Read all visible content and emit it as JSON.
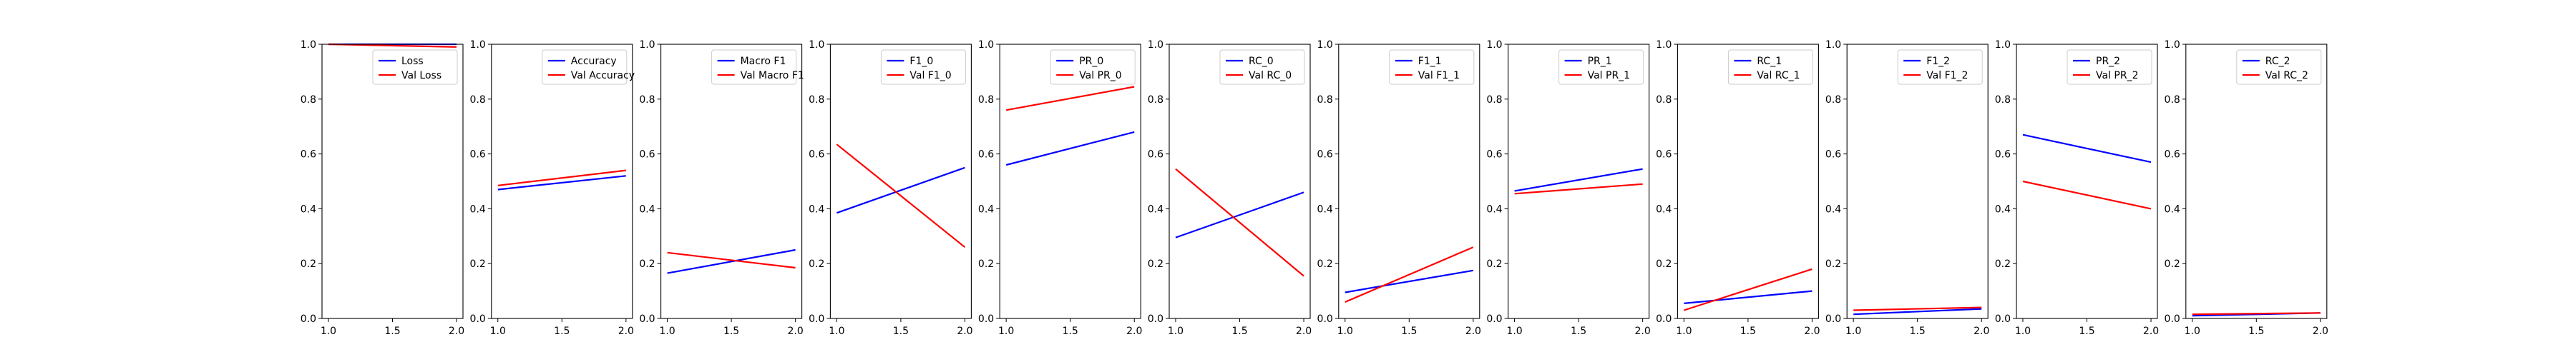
{
  "chart_data": [
    {
      "type": "line",
      "xlim": [
        0.95,
        2.05
      ],
      "ylim": [
        0,
        1
      ],
      "x": [
        1,
        2
      ],
      "xticks": [
        "1.0",
        "1.5",
        "2.0"
      ],
      "yticks": [
        "0.0",
        "0.2",
        "0.4",
        "0.6",
        "0.8",
        "1.0"
      ],
      "legend_position": "top-right",
      "series": [
        {
          "name": "Loss",
          "color": "#0000ff",
          "values": [
            1.0,
            1.0
          ]
        },
        {
          "name": "Val Loss",
          "color": "#ff0000",
          "values": [
            1.0,
            0.99
          ]
        }
      ]
    },
    {
      "type": "line",
      "xlim": [
        0.95,
        2.05
      ],
      "ylim": [
        0,
        1
      ],
      "x": [
        1,
        2
      ],
      "xticks": [
        "1.0",
        "1.5",
        "2.0"
      ],
      "yticks": [
        "0.0",
        "0.2",
        "0.4",
        "0.6",
        "0.8",
        "1.0"
      ],
      "legend_position": "top-right",
      "series": [
        {
          "name": "Accuracy",
          "color": "#0000ff",
          "values": [
            0.47,
            0.52
          ]
        },
        {
          "name": "Val Accuracy",
          "color": "#ff0000",
          "values": [
            0.485,
            0.54
          ]
        }
      ]
    },
    {
      "type": "line",
      "xlim": [
        0.95,
        2.05
      ],
      "ylim": [
        0,
        1
      ],
      "x": [
        1,
        2
      ],
      "xticks": [
        "1.0",
        "1.5",
        "2.0"
      ],
      "yticks": [
        "0.0",
        "0.2",
        "0.4",
        "0.6",
        "0.8",
        "1.0"
      ],
      "legend_position": "top-right",
      "series": [
        {
          "name": "Macro F1",
          "color": "#0000ff",
          "values": [
            0.165,
            0.25
          ]
        },
        {
          "name": "Val Macro F1",
          "color": "#ff0000",
          "values": [
            0.24,
            0.185
          ]
        }
      ]
    },
    {
      "type": "line",
      "xlim": [
        0.95,
        2.05
      ],
      "ylim": [
        0,
        1
      ],
      "x": [
        1,
        2
      ],
      "xticks": [
        "1.0",
        "1.5",
        "2.0"
      ],
      "yticks": [
        "0.0",
        "0.2",
        "0.4",
        "0.6",
        "0.8",
        "1.0"
      ],
      "legend_position": "top-right",
      "series": [
        {
          "name": "F1_0",
          "color": "#0000ff",
          "values": [
            0.385,
            0.55
          ]
        },
        {
          "name": "Val F1_0",
          "color": "#ff0000",
          "values": [
            0.635,
            0.26
          ]
        }
      ]
    },
    {
      "type": "line",
      "xlim": [
        0.95,
        2.05
      ],
      "ylim": [
        0,
        1
      ],
      "x": [
        1,
        2
      ],
      "xticks": [
        "1.0",
        "1.5",
        "2.0"
      ],
      "yticks": [
        "0.0",
        "0.2",
        "0.4",
        "0.6",
        "0.8",
        "1.0"
      ],
      "legend_position": "top-right",
      "series": [
        {
          "name": "PR_0",
          "color": "#0000ff",
          "values": [
            0.56,
            0.68
          ]
        },
        {
          "name": "Val PR_0",
          "color": "#ff0000",
          "values": [
            0.76,
            0.845
          ]
        }
      ]
    },
    {
      "type": "line",
      "xlim": [
        0.95,
        2.05
      ],
      "ylim": [
        0,
        1
      ],
      "x": [
        1,
        2
      ],
      "xticks": [
        "1.0",
        "1.5",
        "2.0"
      ],
      "yticks": [
        "0.0",
        "0.2",
        "0.4",
        "0.6",
        "0.8",
        "1.0"
      ],
      "legend_position": "top-right",
      "series": [
        {
          "name": "RC_0",
          "color": "#0000ff",
          "values": [
            0.295,
            0.46
          ]
        },
        {
          "name": "Val RC_0",
          "color": "#ff0000",
          "values": [
            0.545,
            0.155
          ]
        }
      ]
    },
    {
      "type": "line",
      "xlim": [
        0.95,
        2.05
      ],
      "ylim": [
        0,
        1
      ],
      "x": [
        1,
        2
      ],
      "xticks": [
        "1.0",
        "1.5",
        "2.0"
      ],
      "yticks": [
        "0.0",
        "0.2",
        "0.4",
        "0.6",
        "0.8",
        "1.0"
      ],
      "legend_position": "top-right",
      "series": [
        {
          "name": "F1_1",
          "color": "#0000ff",
          "values": [
            0.095,
            0.175
          ]
        },
        {
          "name": "Val F1_1",
          "color": "#ff0000",
          "values": [
            0.06,
            0.26
          ]
        }
      ]
    },
    {
      "type": "line",
      "xlim": [
        0.95,
        2.05
      ],
      "ylim": [
        0,
        1
      ],
      "x": [
        1,
        2
      ],
      "xticks": [
        "1.0",
        "1.5",
        "2.0"
      ],
      "yticks": [
        "0.0",
        "0.2",
        "0.4",
        "0.6",
        "0.8",
        "1.0"
      ],
      "legend_position": "top-right",
      "series": [
        {
          "name": "PR_1",
          "color": "#0000ff",
          "values": [
            0.465,
            0.545
          ]
        },
        {
          "name": "Val PR_1",
          "color": "#ff0000",
          "values": [
            0.455,
            0.49
          ]
        }
      ]
    },
    {
      "type": "line",
      "xlim": [
        0.95,
        2.05
      ],
      "ylim": [
        0,
        1
      ],
      "x": [
        1,
        2
      ],
      "xticks": [
        "1.0",
        "1.5",
        "2.0"
      ],
      "yticks": [
        "0.0",
        "0.2",
        "0.4",
        "0.6",
        "0.8",
        "1.0"
      ],
      "legend_position": "top-right",
      "series": [
        {
          "name": "RC_1",
          "color": "#0000ff",
          "values": [
            0.055,
            0.1
          ]
        },
        {
          "name": "Val RC_1",
          "color": "#ff0000",
          "values": [
            0.03,
            0.18
          ]
        }
      ]
    },
    {
      "type": "line",
      "xlim": [
        0.95,
        2.05
      ],
      "ylim": [
        0,
        1
      ],
      "x": [
        1,
        2
      ],
      "xticks": [
        "1.0",
        "1.5",
        "2.0"
      ],
      "yticks": [
        "0.0",
        "0.2",
        "0.4",
        "0.6",
        "0.8",
        "1.0"
      ],
      "legend_position": "top-right",
      "series": [
        {
          "name": "F1_2",
          "color": "#0000ff",
          "values": [
            0.015,
            0.035
          ]
        },
        {
          "name": "Val F1_2",
          "color": "#ff0000",
          "values": [
            0.03,
            0.04
          ]
        }
      ]
    },
    {
      "type": "line",
      "xlim": [
        0.95,
        2.05
      ],
      "ylim": [
        0,
        1
      ],
      "x": [
        1,
        2
      ],
      "xticks": [
        "1.0",
        "1.5",
        "2.0"
      ],
      "yticks": [
        "0.0",
        "0.2",
        "0.4",
        "0.6",
        "0.8",
        "1.0"
      ],
      "legend_position": "top-right",
      "series": [
        {
          "name": "PR_2",
          "color": "#0000ff",
          "values": [
            0.67,
            0.57
          ]
        },
        {
          "name": "Val PR_2",
          "color": "#ff0000",
          "values": [
            0.5,
            0.4
          ]
        }
      ]
    },
    {
      "type": "line",
      "xlim": [
        0.95,
        2.05
      ],
      "ylim": [
        0,
        1
      ],
      "x": [
        1,
        2
      ],
      "xticks": [
        "1.0",
        "1.5",
        "2.0"
      ],
      "yticks": [
        "0.0",
        "0.2",
        "0.4",
        "0.6",
        "0.8",
        "1.0"
      ],
      "legend_position": "top-right",
      "series": [
        {
          "name": "RC_2",
          "color": "#0000ff",
          "values": [
            0.01,
            0.02
          ]
        },
        {
          "name": "Val RC_2",
          "color": "#ff0000",
          "values": [
            0.015,
            0.02
          ]
        }
      ]
    }
  ]
}
